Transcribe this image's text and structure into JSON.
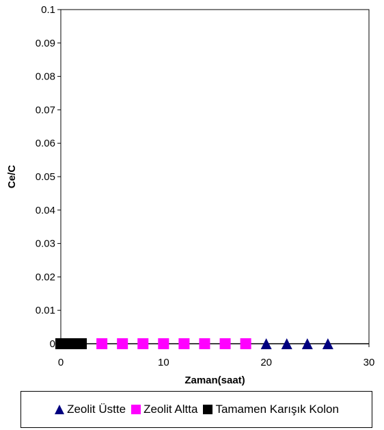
{
  "chart_data": {
    "type": "scatter",
    "title": "",
    "xlabel": "Zaman(saat)",
    "ylabel": "Ce/C",
    "xlim": [
      0,
      30
    ],
    "ylim": [
      0,
      0.1
    ],
    "x_ticks": [
      0,
      10,
      20,
      30
    ],
    "y_ticks": [
      0,
      0.01,
      0.02,
      0.03,
      0.04,
      0.05,
      0.06,
      0.07,
      0.08,
      0.09,
      0.1
    ],
    "x_tick_labels": [
      "0",
      "10",
      "20",
      "30"
    ],
    "y_tick_labels": [
      "0",
      "0.01",
      "0.02",
      "0.03",
      "0.04",
      "0.05",
      "0.06",
      "0.07",
      "0.08",
      "0.09",
      "0.1"
    ],
    "grid": false,
    "legend_position": "bottom",
    "series": [
      {
        "name": "Zeolit Üstte",
        "marker": "triangle",
        "color": "#000080",
        "x": [
          20,
          22,
          24,
          26
        ],
        "y": [
          0,
          0,
          0,
          0
        ]
      },
      {
        "name": "Zeolit Altta",
        "marker": "square",
        "color": "#ff00ff",
        "x": [
          4,
          6,
          8,
          10,
          12,
          14,
          16,
          18
        ],
        "y": [
          0,
          0,
          0,
          0,
          0,
          0,
          0,
          0
        ]
      },
      {
        "name": "Tamamen Karışık Kolon",
        "marker": "square",
        "color": "#000000",
        "x": [
          0,
          0.5,
          1,
          1.5,
          2
        ],
        "y": [
          0,
          0,
          0,
          0,
          0
        ]
      }
    ]
  }
}
